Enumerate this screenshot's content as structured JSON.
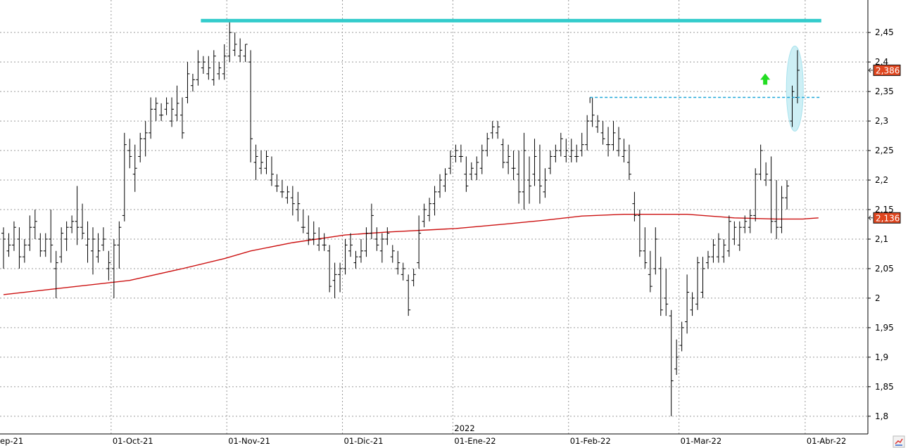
{
  "chart_data": {
    "type": "ohlc",
    "colors": {
      "bars": "#000000",
      "moving_average": "#cc1111",
      "resistance_line": "#33cccc",
      "dashed_line": "#1fa7d9",
      "arrow": "#22dd22",
      "highlight": "#cdeff5",
      "badge": "#e0461f",
      "grid": "#9a9a9a"
    },
    "y_axis": {
      "min": 1.77,
      "max": 2.505,
      "ticks": [
        "1,8",
        "1,85",
        "1,9",
        "1,95",
        "2",
        "2,05",
        "2,1",
        "2,15",
        "2,2",
        "2,25",
        "2,3",
        "2,35",
        "2,4",
        "2,45"
      ],
      "tick_values": [
        1.8,
        1.85,
        1.9,
        1.95,
        2.0,
        2.05,
        2.1,
        2.15,
        2.2,
        2.25,
        2.3,
        2.35,
        2.4,
        2.45
      ],
      "position": "right"
    },
    "x_axis": {
      "labels": [
        "ep-21",
        "01-Oct-21",
        "01-Nov-21",
        "01-Dic-21",
        "01-Ene-22",
        "01-Feb-22",
        "01-Mar-22",
        "01-Abr-22"
      ],
      "label_bar_index": [
        -1,
        21,
        43,
        65,
        86,
        108,
        129,
        153
      ],
      "year_label": "2022",
      "year_bar_index": 86
    },
    "bars": [
      [
        2.12,
        2.05,
        2.11,
        2.1
      ],
      [
        2.11,
        2.07,
        2.08,
        2.09
      ],
      [
        2.13,
        2.08,
        2.09,
        2.12
      ],
      [
        2.12,
        2.05,
        2.1,
        2.07
      ],
      [
        2.1,
        2.06,
        2.07,
        2.09
      ],
      [
        2.14,
        2.08,
        2.09,
        2.12
      ],
      [
        2.15,
        2.1,
        2.12,
        2.13
      ],
      [
        2.11,
        2.07,
        2.1,
        2.08
      ],
      [
        2.11,
        2.07,
        2.08,
        2.1
      ],
      [
        2.15,
        2.06,
        2.1,
        2.09
      ],
      [
        2.08,
        2.0,
        2.05,
        2.06
      ],
      [
        2.12,
        2.06,
        2.07,
        2.11
      ],
      [
        2.13,
        2.08,
        2.1,
        2.12
      ],
      [
        2.14,
        2.11,
        2.12,
        2.13
      ],
      [
        2.19,
        2.09,
        2.13,
        2.12
      ],
      [
        2.16,
        2.1,
        2.12,
        2.11
      ],
      [
        2.13,
        2.06,
        2.09,
        2.1
      ],
      [
        2.12,
        2.04,
        2.08,
        2.1
      ],
      [
        2.11,
        2.06,
        2.07,
        2.08
      ],
      [
        2.12,
        2.08,
        2.09,
        2.1
      ],
      [
        2.08,
        2.03,
        2.05,
        2.06
      ],
      [
        2.1,
        2.0,
        2.05,
        2.09
      ],
      [
        2.13,
        2.05,
        2.09,
        2.12
      ],
      [
        2.28,
        2.13,
        2.14,
        2.26
      ],
      [
        2.27,
        2.22,
        2.25,
        2.24
      ],
      [
        2.26,
        2.18,
        2.21,
        2.22
      ],
      [
        2.28,
        2.23,
        2.24,
        2.27
      ],
      [
        2.3,
        2.24,
        2.27,
        2.28
      ],
      [
        2.34,
        2.27,
        2.28,
        2.32
      ],
      [
        2.34,
        2.3,
        2.32,
        2.33
      ],
      [
        2.33,
        2.3,
        2.31,
        2.31
      ],
      [
        2.34,
        2.31,
        2.32,
        2.33
      ],
      [
        2.34,
        2.29,
        2.3,
        2.32
      ],
      [
        2.36,
        2.3,
        2.31,
        2.33
      ],
      [
        2.34,
        2.27,
        2.31,
        2.28
      ],
      [
        2.4,
        2.33,
        2.34,
        2.38
      ],
      [
        2.38,
        2.35,
        2.36,
        2.37
      ],
      [
        2.42,
        2.36,
        2.37,
        2.4
      ],
      [
        2.41,
        2.38,
        2.39,
        2.4
      ],
      [
        2.41,
        2.37,
        2.38,
        2.39
      ],
      [
        2.42,
        2.36,
        2.37,
        2.41
      ],
      [
        2.4,
        2.37,
        2.38,
        2.39
      ],
      [
        2.43,
        2.37,
        2.38,
        2.41
      ],
      [
        2.47,
        2.4,
        2.41,
        2.45
      ],
      [
        2.45,
        2.41,
        2.42,
        2.43
      ],
      [
        2.44,
        2.4,
        2.41,
        2.42
      ],
      [
        2.43,
        2.4,
        2.41,
        2.43
      ],
      [
        2.42,
        2.23,
        2.4,
        2.27
      ],
      [
        2.26,
        2.2,
        2.23,
        2.24
      ],
      [
        2.25,
        2.21,
        2.22,
        2.23
      ],
      [
        2.25,
        2.21,
        2.22,
        2.24
      ],
      [
        2.24,
        2.19,
        2.2,
        2.21
      ],
      [
        2.21,
        2.18,
        2.19,
        2.19
      ],
      [
        2.2,
        2.17,
        2.18,
        2.18
      ],
      [
        2.19,
        2.16,
        2.17,
        2.18
      ],
      [
        2.19,
        2.14,
        2.17,
        2.16
      ],
      [
        2.18,
        2.13,
        2.15,
        2.16
      ],
      [
        2.15,
        2.11,
        2.12,
        2.12
      ],
      [
        2.14,
        2.09,
        2.11,
        2.1
      ],
      [
        2.13,
        2.09,
        2.1,
        2.11
      ],
      [
        2.12,
        2.08,
        2.09,
        2.1
      ],
      [
        2.11,
        2.08,
        2.09,
        2.09
      ],
      [
        2.09,
        2.01,
        2.08,
        2.02
      ],
      [
        2.06,
        2.0,
        2.03,
        2.04
      ],
      [
        2.06,
        2.01,
        2.04,
        2.05
      ],
      [
        2.1,
        2.04,
        2.05,
        2.09
      ],
      [
        2.11,
        2.07,
        2.08,
        2.09
      ],
      [
        2.08,
        2.05,
        2.06,
        2.07
      ],
      [
        2.1,
        2.06,
        2.07,
        2.08
      ],
      [
        2.12,
        2.07,
        2.08,
        2.11
      ],
      [
        2.16,
        2.1,
        2.11,
        2.14
      ],
      [
        2.12,
        2.08,
        2.1,
        2.09
      ],
      [
        2.11,
        2.06,
        2.08,
        2.1
      ],
      [
        2.12,
        2.09,
        2.1,
        2.11
      ],
      [
        2.09,
        2.06,
        2.07,
        2.08
      ],
      [
        2.08,
        2.04,
        2.05,
        2.06
      ],
      [
        2.06,
        2.03,
        2.04,
        2.05
      ],
      [
        2.04,
        1.97,
        2.03,
        1.98
      ],
      [
        2.05,
        2.02,
        2.03,
        2.04
      ],
      [
        2.14,
        2.05,
        2.06,
        2.11
      ],
      [
        2.16,
        2.12,
        2.13,
        2.15
      ],
      [
        2.17,
        2.13,
        2.14,
        2.16
      ],
      [
        2.19,
        2.14,
        2.16,
        2.18
      ],
      [
        2.21,
        2.17,
        2.18,
        2.2
      ],
      [
        2.22,
        2.18,
        2.19,
        2.21
      ],
      [
        2.25,
        2.21,
        2.22,
        2.24
      ],
      [
        2.26,
        2.23,
        2.24,
        2.25
      ],
      [
        2.26,
        2.23,
        2.24,
        2.24
      ],
      [
        2.24,
        2.18,
        2.21,
        2.19
      ],
      [
        2.23,
        2.2,
        2.21,
        2.22
      ],
      [
        2.24,
        2.2,
        2.21,
        2.23
      ],
      [
        2.26,
        2.21,
        2.22,
        2.25
      ],
      [
        2.28,
        2.24,
        2.25,
        2.27
      ],
      [
        2.3,
        2.27,
        2.28,
        2.29
      ],
      [
        2.3,
        2.27,
        2.28,
        2.29
      ],
      [
        2.27,
        2.22,
        2.26,
        2.23
      ],
      [
        2.26,
        2.21,
        2.23,
        2.24
      ],
      [
        2.25,
        2.2,
        2.22,
        2.22
      ],
      [
        2.25,
        2.16,
        2.21,
        2.18
      ],
      [
        2.28,
        2.15,
        2.18,
        2.25
      ],
      [
        2.24,
        2.16,
        2.2,
        2.19
      ],
      [
        2.27,
        2.19,
        2.21,
        2.24
      ],
      [
        2.26,
        2.16,
        2.2,
        2.19
      ],
      [
        2.22,
        2.17,
        2.18,
        2.2
      ],
      [
        2.25,
        2.21,
        2.22,
        2.24
      ],
      [
        2.26,
        2.23,
        2.24,
        2.25
      ],
      [
        2.28,
        2.24,
        2.25,
        2.27
      ],
      [
        2.27,
        2.23,
        2.24,
        2.25
      ],
      [
        2.27,
        2.23,
        2.24,
        2.25
      ],
      [
        2.26,
        2.23,
        2.24,
        2.24
      ],
      [
        2.28,
        2.24,
        2.25,
        2.26
      ],
      [
        2.31,
        2.25,
        2.26,
        2.3
      ],
      [
        2.34,
        2.29,
        2.3,
        2.31
      ],
      [
        2.31,
        2.28,
        2.29,
        2.3
      ],
      [
        2.3,
        2.26,
        2.28,
        2.27
      ],
      [
        2.29,
        2.24,
        2.26,
        2.26
      ],
      [
        2.3,
        2.25,
        2.26,
        2.28
      ],
      [
        2.29,
        2.24,
        2.25,
        2.27
      ],
      [
        2.27,
        2.23,
        2.24,
        2.25
      ],
      [
        2.26,
        2.2,
        2.23,
        2.21
      ],
      [
        2.18,
        2.13,
        2.16,
        2.14
      ],
      [
        2.15,
        2.07,
        2.14,
        2.08
      ],
      [
        2.12,
        2.05,
        2.08,
        2.06
      ],
      [
        2.08,
        2.01,
        2.04,
        2.02
      ],
      [
        2.12,
        2.04,
        2.05,
        2.1
      ],
      [
        2.07,
        1.97,
        2.05,
        1.98
      ],
      [
        2.05,
        1.97,
        2.0,
        1.99
      ],
      [
        1.98,
        1.8,
        1.97,
        1.86
      ],
      [
        1.93,
        1.87,
        1.88,
        1.9
      ],
      [
        1.96,
        1.91,
        1.92,
        1.95
      ],
      [
        2.04,
        1.94,
        1.96,
        2.01
      ],
      [
        2.01,
        1.97,
        1.98,
        2.0
      ],
      [
        2.07,
        1.98,
        1.99,
        2.06
      ],
      [
        2.07,
        2.0,
        2.01,
        2.05
      ],
      [
        2.08,
        2.05,
        2.06,
        2.07
      ],
      [
        2.1,
        2.06,
        2.07,
        2.09
      ],
      [
        2.11,
        2.06,
        2.07,
        2.1
      ],
      [
        2.1,
        2.06,
        2.07,
        2.09
      ],
      [
        2.14,
        2.07,
        2.08,
        2.13
      ],
      [
        2.13,
        2.09,
        2.1,
        2.12
      ],
      [
        2.13,
        2.08,
        2.09,
        2.12
      ],
      [
        2.14,
        2.11,
        2.12,
        2.13
      ],
      [
        2.15,
        2.11,
        2.12,
        2.14
      ],
      [
        2.22,
        2.13,
        2.14,
        2.21
      ],
      [
        2.26,
        2.2,
        2.21,
        2.25
      ],
      [
        2.23,
        2.19,
        2.2,
        2.21
      ],
      [
        2.24,
        2.11,
        2.2,
        2.13
      ],
      [
        2.2,
        2.1,
        2.13,
        2.12
      ],
      [
        2.19,
        2.11,
        2.12,
        2.17
      ],
      [
        2.2,
        2.15,
        2.17,
        2.19
      ],
      [
        2.36,
        2.29,
        2.3,
        2.35
      ],
      [
        2.42,
        2.33,
        2.34,
        2.386
      ]
    ],
    "moving_average": [
      [
        0,
        2.006
      ],
      [
        12,
        2.018
      ],
      [
        24,
        2.03
      ],
      [
        34,
        2.05
      ],
      [
        42,
        2.067
      ],
      [
        47,
        2.08
      ],
      [
        55,
        2.094
      ],
      [
        65,
        2.107
      ],
      [
        73,
        2.112
      ],
      [
        86,
        2.118
      ],
      [
        96,
        2.126
      ],
      [
        103,
        2.132
      ],
      [
        110,
        2.139
      ],
      [
        118,
        2.142
      ],
      [
        130,
        2.142
      ],
      [
        139,
        2.136
      ],
      [
        147,
        2.134
      ],
      [
        152,
        2.134
      ],
      [
        155,
        2.136
      ]
    ],
    "resistance_line": {
      "value": 2.47,
      "from_bar": 37,
      "to_bar": 157
    },
    "dashed_line": {
      "value": 2.34,
      "from_bar": 111,
      "to_bar": 155
    },
    "last_price_label": "2,386",
    "last_price": 2.386,
    "ma_label": "2,136",
    "ma_value": 2.136
  }
}
